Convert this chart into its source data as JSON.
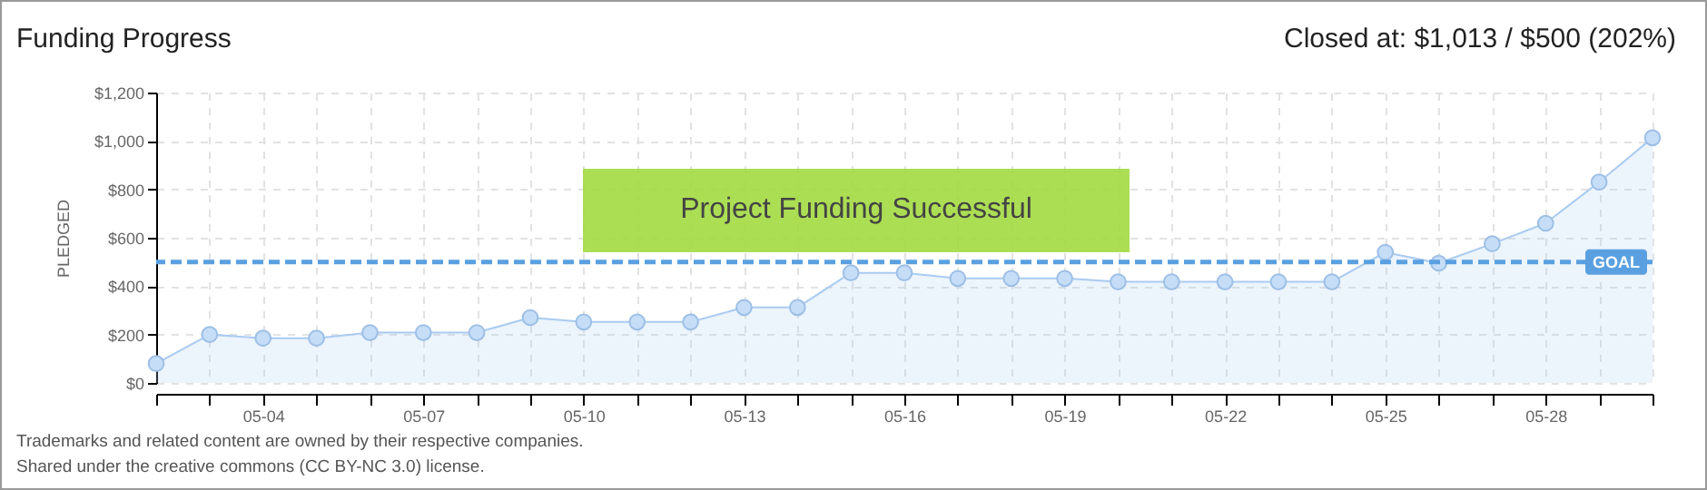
{
  "chart_data": {
    "type": "area",
    "title": "Funding Progress",
    "ylabel": "PLEDGED",
    "categories": [
      null,
      null,
      "05-04",
      null,
      null,
      "05-07",
      null,
      null,
      "05-10",
      null,
      null,
      "05-13",
      null,
      null,
      "05-16",
      null,
      null,
      "05-19",
      null,
      null,
      "05-22",
      null,
      null,
      "05-25",
      null,
      null,
      "05-28",
      null,
      null
    ],
    "series": [
      {
        "color": "#a9cbf2",
        "values": [
          80,
          200,
          185,
          185,
          208,
          208,
          208,
          270,
          252,
          252,
          252,
          312,
          312,
          455,
          455,
          432,
          432,
          432,
          418,
          418,
          418,
          418,
          418,
          540,
          495,
          575,
          660,
          830,
          1013
        ]
      }
    ],
    "ylim": [
      0,
      1200
    ],
    "yticks": [
      {
        "value": 0,
        "label": "$0"
      },
      {
        "value": 200,
        "label": "$200"
      },
      {
        "value": 400,
        "label": "$400"
      },
      {
        "value": 600,
        "label": "$600"
      },
      {
        "value": 800,
        "label": "$800"
      },
      {
        "value": 1000,
        "label": "$1,000"
      },
      {
        "value": 1200,
        "label": "$1,200"
      }
    ],
    "ref_lines": [
      {
        "axis": "y",
        "value": 500,
        "label": "GOAL",
        "color": "#5aa0e0",
        "line_style": "dashed"
      }
    ],
    "grid": true,
    "marker": "circle",
    "line_style": "solid",
    "annotations": [
      "Closed at: $1,013 / $500 (202%)",
      "Project Funding Successful",
      "Trademarks and related content are owned by their respective companies.",
      "Shared under the creative commons (CC BY-NC 3.0) license."
    ]
  }
}
